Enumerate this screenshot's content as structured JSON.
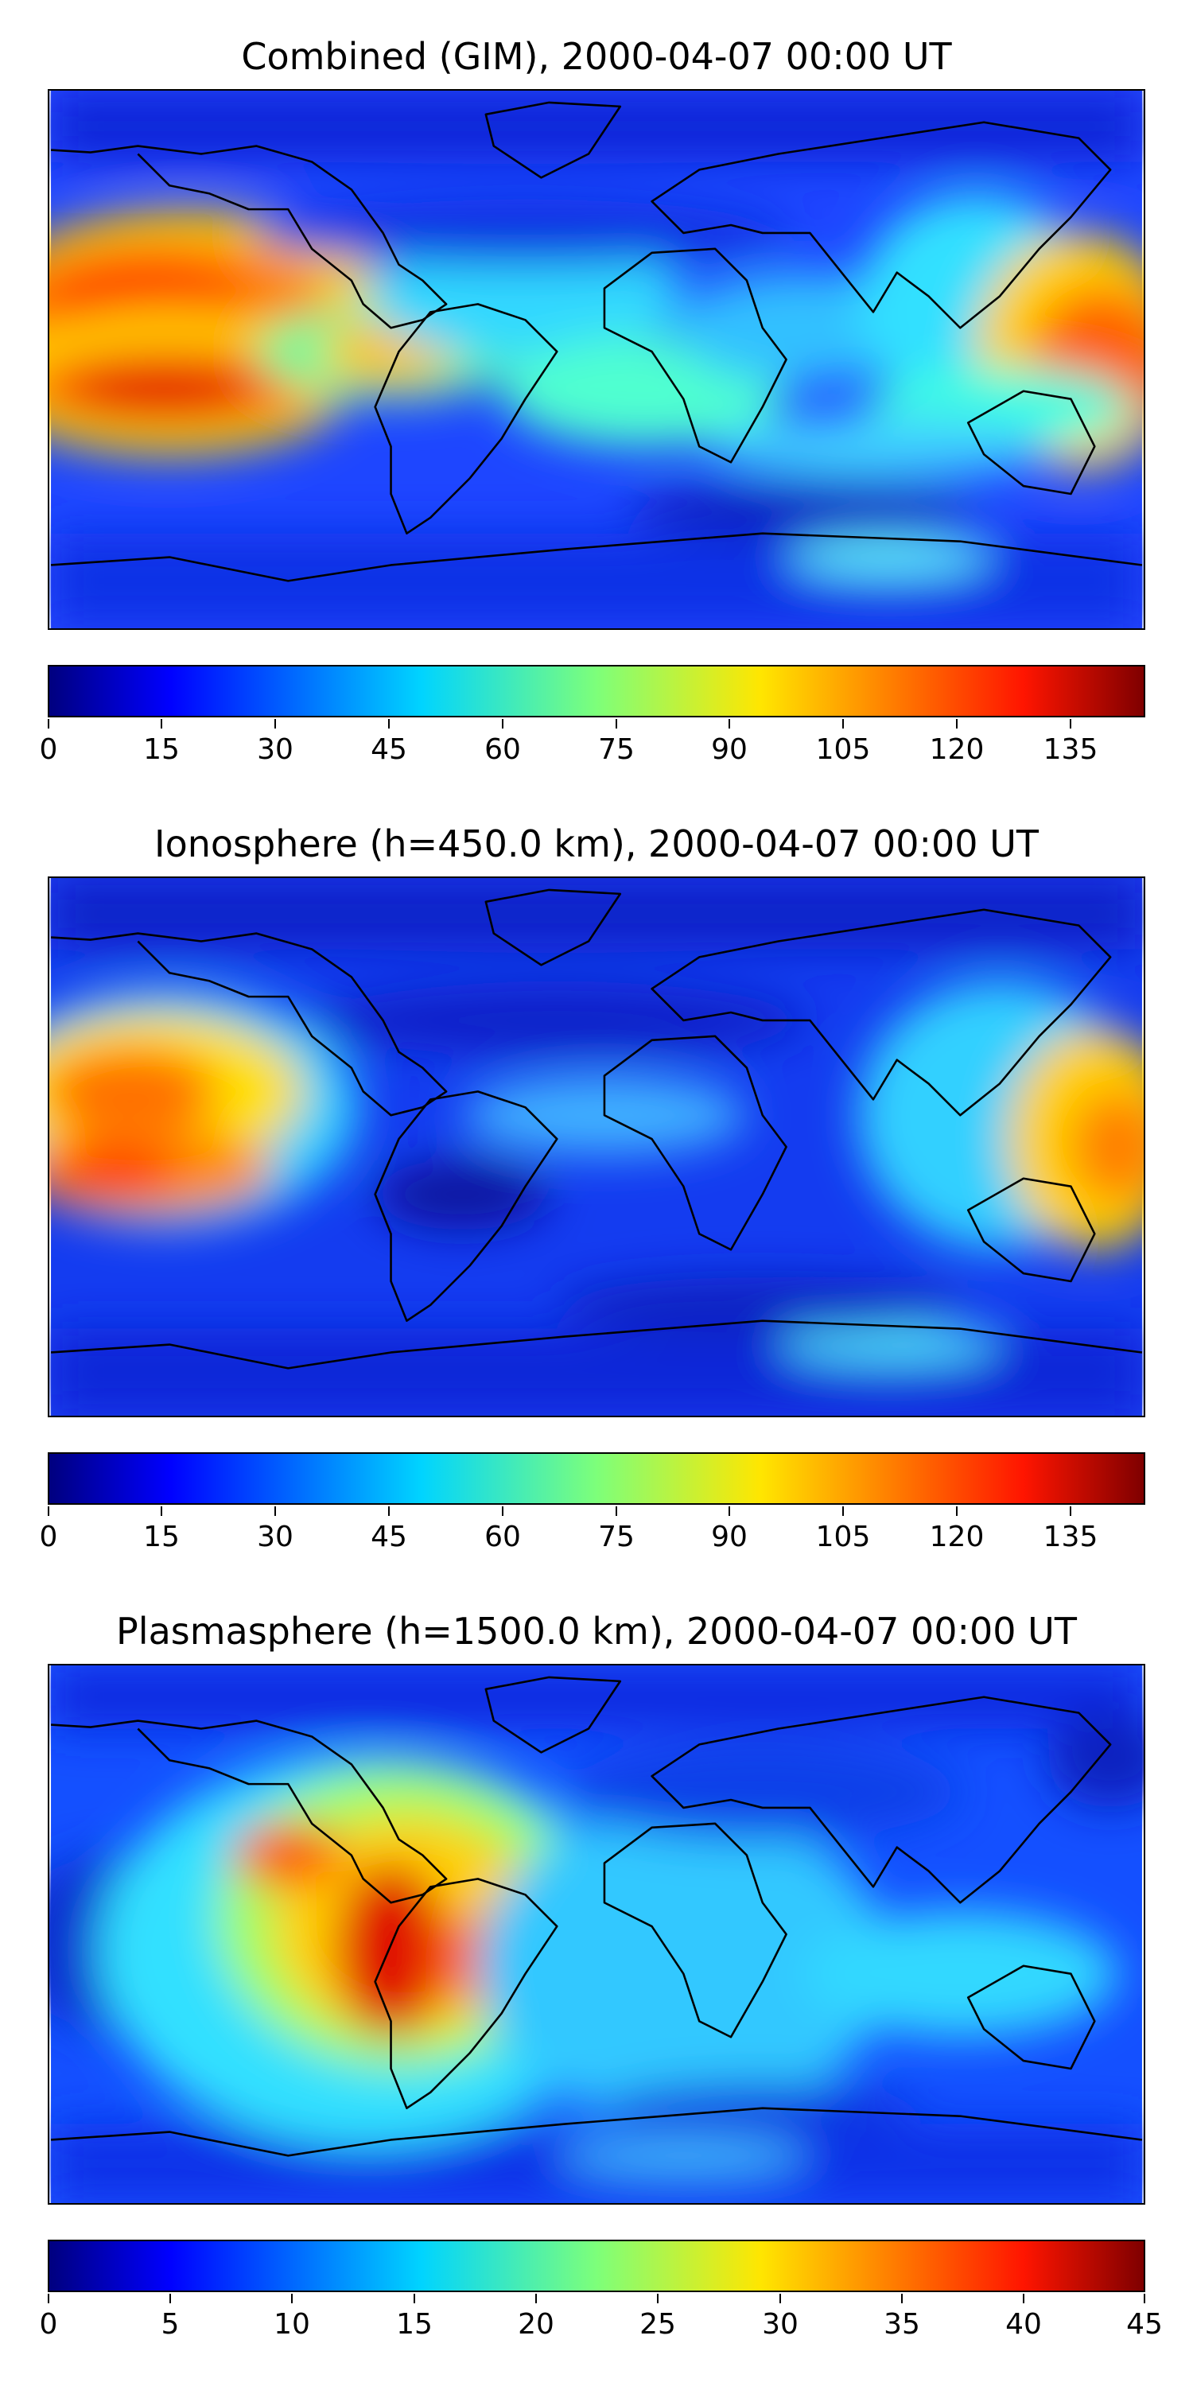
{
  "panels": [
    {
      "title": "Combined (GIM), 2000-04-07 00:00 UT",
      "colorbar": {
        "min": 0,
        "max": 145,
        "levels": 29,
        "ticks": [
          "0",
          "15",
          "30",
          "45",
          "60",
          "75",
          "90",
          "105",
          "120",
          "135"
        ]
      },
      "map_data": {
        "type": "filled-contour map",
        "colormap": "jet",
        "projection": "equirectangular, global",
        "summary": "High values over the eastern Pacific west of Central America and over the western Pacific near Indonesia/New Guinea; low values at high latitudes and southern ocean"
      }
    },
    {
      "title": "Ionosphere  (h=450.0 km), 2000-04-07 00:00 UT",
      "colorbar": {
        "min": 0,
        "max": 145,
        "levels": 29,
        "ticks": [
          "0",
          "15",
          "30",
          "45",
          "60",
          "75",
          "90",
          "105",
          "120",
          "135"
        ]
      },
      "map_data": {
        "type": "filled-contour map",
        "colormap": "jet",
        "projection": "equirectangular, global",
        "summary": "Peaks over the eastern Pacific and near Indonesia/Philippines; low values over the Atlantic, Africa and polar regions"
      }
    },
    {
      "title": "Plasmasphere (h=1500.0 km), 2000-04-07 00:00 UT",
      "colorbar": {
        "min": 0,
        "max": 45,
        "levels": 18,
        "ticks": [
          "0",
          "5",
          "10",
          "15",
          "20",
          "25",
          "30",
          "35",
          "40",
          "45"
        ]
      },
      "map_data": {
        "type": "filled-contour map",
        "colormap": "jet",
        "projection": "equirectangular, global",
        "summary": "Maximum over northern South America and Central America; moderate over the South Atlantic; low over northern Pacific and polar regions"
      }
    }
  ],
  "colors": {
    "frame": "#000000",
    "coast": "#000000"
  }
}
